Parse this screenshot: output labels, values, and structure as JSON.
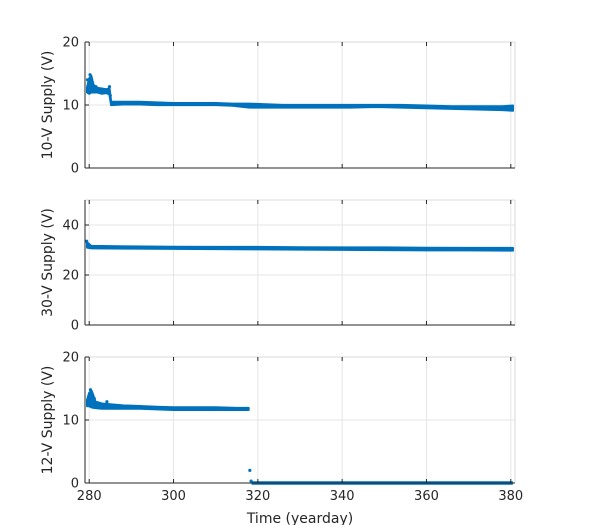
{
  "figure": {
    "xlabel": "Time (yearday)",
    "xlim": [
      279,
      381
    ],
    "xticks": [
      280,
      300,
      320,
      340,
      360,
      380
    ],
    "marker_color": "#0072BD",
    "grid": true
  },
  "chart_data": [
    {
      "type": "scatter",
      "ylabel": "10-V Supply (V)",
      "ylim": [
        0,
        20
      ],
      "yticks": [
        0,
        10,
        20
      ],
      "xlabel": "",
      "series": [
        {
          "band": [
            [
              279.5,
              12.0,
              12.8
            ],
            [
              280.0,
              11.8,
              14.2
            ],
            [
              280.5,
              12.0,
              14.6
            ],
            [
              281.0,
              12.0,
              13.2
            ],
            [
              282.0,
              12.0,
              12.7
            ],
            [
              283.0,
              11.8,
              12.6
            ],
            [
              284.0,
              11.9,
              12.5
            ],
            [
              284.8,
              11.7,
              12.6
            ],
            [
              285.2,
              10.0,
              10.5
            ],
            [
              288.0,
              10.1,
              10.5
            ],
            [
              292.0,
              10.1,
              10.5
            ],
            [
              296.0,
              10.0,
              10.4
            ],
            [
              300.0,
              10.0,
              10.3
            ],
            [
              305.0,
              10.0,
              10.3
            ],
            [
              310.0,
              10.0,
              10.3
            ],
            [
              314.0,
              9.9,
              10.2
            ],
            [
              318.0,
              9.6,
              10.2
            ],
            [
              322.0,
              9.6,
              10.1
            ],
            [
              326.0,
              9.6,
              10.0
            ],
            [
              330.0,
              9.6,
              10.0
            ],
            [
              336.0,
              9.6,
              10.0
            ],
            [
              342.0,
              9.6,
              10.0
            ],
            [
              348.0,
              9.7,
              10.0
            ],
            [
              354.0,
              9.6,
              10.0
            ],
            [
              360.0,
              9.5,
              9.9
            ],
            [
              366.0,
              9.4,
              9.8
            ],
            [
              372.0,
              9.3,
              9.8
            ],
            [
              378.0,
              9.2,
              9.8
            ],
            [
              380.5,
              9.1,
              9.9
            ]
          ],
          "points": [
            [
              279.6,
              14.0
            ],
            [
              280.2,
              14.8
            ],
            [
              280.8,
              13.5
            ],
            [
              281.6,
              12.9
            ],
            [
              284.8,
              12.9
            ],
            [
              285.0,
              11.5
            ]
          ]
        }
      ]
    },
    {
      "type": "scatter",
      "ylabel": "30-V Supply (V)",
      "ylim": [
        0,
        50
      ],
      "yticks": [
        0,
        20,
        40
      ],
      "xlabel": "",
      "series": [
        {
          "band": [
            [
              279.5,
              31.0,
              33.0
            ],
            [
              280.5,
              30.7,
              31.6
            ],
            [
              290.0,
              30.6,
              31.4
            ],
            [
              300.0,
              30.5,
              31.3
            ],
            [
              310.0,
              30.4,
              31.2
            ],
            [
              320.0,
              30.3,
              31.2
            ],
            [
              330.0,
              30.2,
              31.1
            ],
            [
              340.0,
              30.1,
              31.0
            ],
            [
              350.0,
              30.0,
              31.0
            ],
            [
              360.0,
              29.9,
              30.9
            ],
            [
              370.0,
              29.9,
              30.8
            ],
            [
              380.5,
              29.8,
              30.8
            ]
          ],
          "points": [
            [
              279.4,
              33.5
            ]
          ]
        }
      ]
    },
    {
      "type": "scatter",
      "ylabel": "12-V Supply (V)",
      "ylim": [
        0,
        20
      ],
      "yticks": [
        0,
        10,
        20
      ],
      "xlabel": "Time (yearday)",
      "series": [
        {
          "band": [
            [
              279.5,
              12.2,
              13.2
            ],
            [
              280.0,
              12.2,
              14.3
            ],
            [
              280.6,
              12.0,
              14.6
            ],
            [
              281.5,
              11.9,
              12.9
            ],
            [
              283.0,
              11.8,
              12.6
            ],
            [
              285.0,
              11.8,
              12.5
            ],
            [
              288.0,
              11.8,
              12.3
            ],
            [
              292.0,
              11.8,
              12.2
            ],
            [
              296.0,
              11.7,
              12.1
            ],
            [
              300.0,
              11.6,
              12.0
            ],
            [
              305.0,
              11.6,
              12.0
            ],
            [
              310.0,
              11.6,
              12.0
            ],
            [
              315.0,
              11.6,
              11.9
            ],
            [
              317.8,
              11.6,
              11.9
            ]
          ],
          "points": [
            [
              280.3,
              14.8
            ],
            [
              281.2,
              13.4
            ],
            [
              284.2,
              12.9
            ],
            [
              318.1,
              2.0
            ],
            [
              318.4,
              0.3
            ]
          ],
          "zero_segment": [
            318.5,
            380.5
          ]
        }
      ]
    }
  ]
}
